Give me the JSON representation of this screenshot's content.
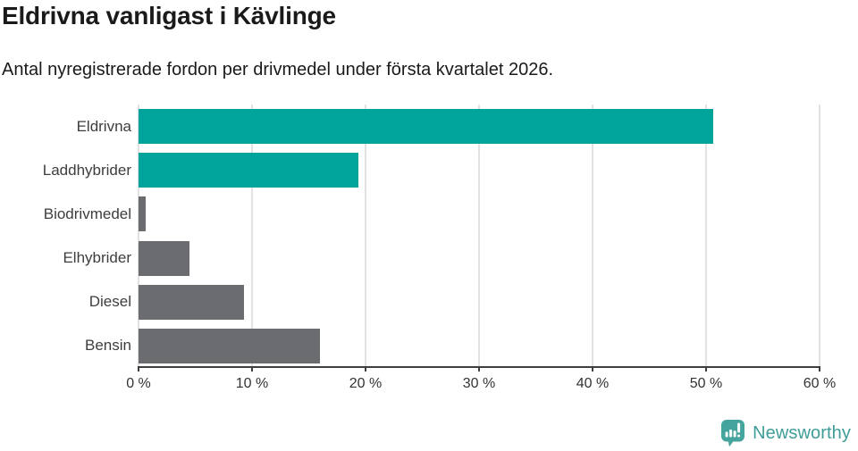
{
  "chart_data": {
    "type": "bar",
    "orientation": "horizontal",
    "title": "Eldrivna vanligast i Kävlinge",
    "subtitle": "Antal nyregistrerade fordon per drivmedel under första kvartalet 2026.",
    "categories": [
      "Eldrivna",
      "Laddhybrider",
      "Biodrivmedel",
      "Elhybrider",
      "Diesel",
      "Bensin"
    ],
    "values": [
      50.6,
      19.4,
      0.6,
      4.5,
      9.3,
      16.0
    ],
    "unit": "%",
    "xlim": [
      0,
      60
    ],
    "x_ticks": [
      0,
      10,
      20,
      30,
      40,
      50,
      60
    ],
    "x_tick_labels": [
      "0 %",
      "10 %",
      "20 %",
      "30 %",
      "40 %",
      "50 %",
      "60 %"
    ],
    "grid": "vertical",
    "legend": "none",
    "bar_colors": [
      "#00a49b",
      "#00a49b",
      "#6a6c70",
      "#6a6c70",
      "#6a6c70",
      "#6a6c70"
    ],
    "colors": {
      "teal": "#00a49b",
      "gray": "#6a6c70",
      "gridline": "#e2e2e2",
      "axis": "#3f3f3f",
      "category_label": "#3d3d3d",
      "title_text": "#1a1a1a"
    }
  },
  "branding": {
    "logo_text": "Newsworthy",
    "logo_color": "#3f9d98",
    "icon_color": "#46a49e",
    "icon_name": "newsworthy-bubble-barchart-icon"
  }
}
